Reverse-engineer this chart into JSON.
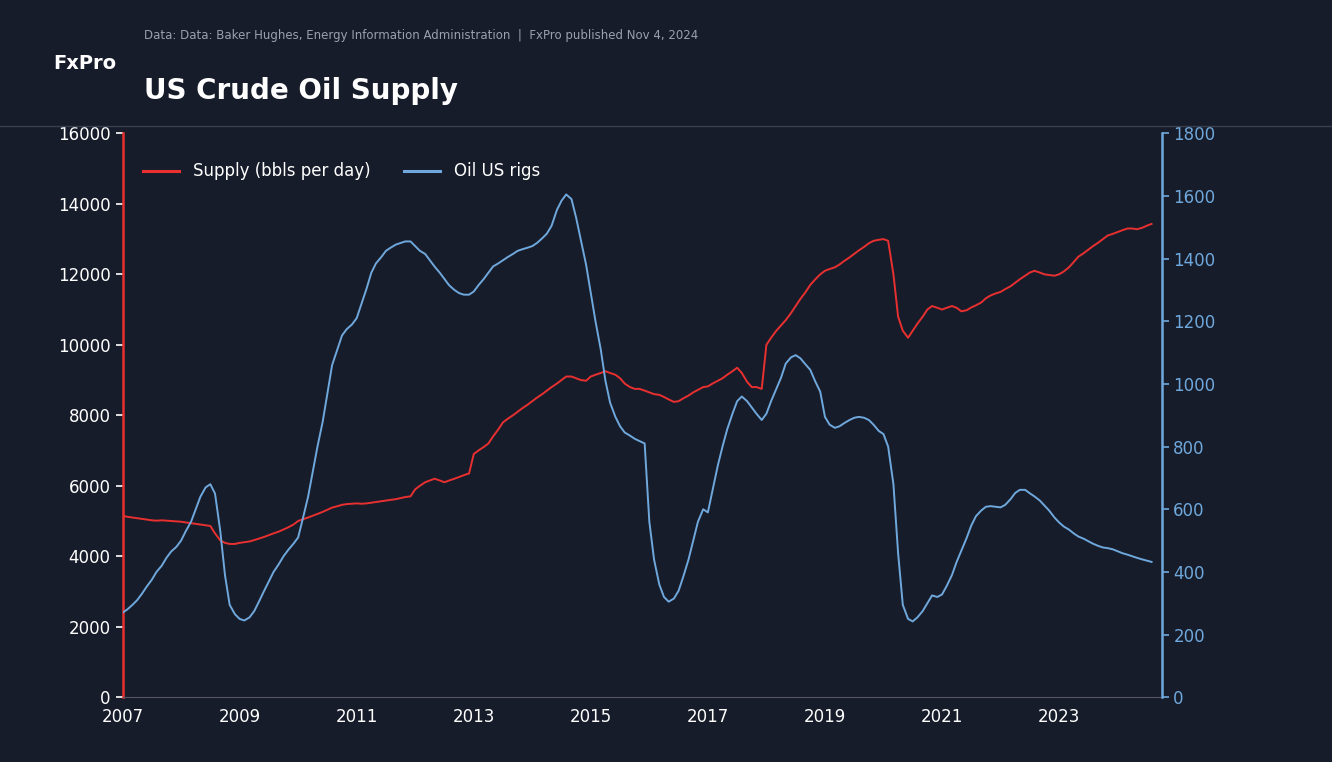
{
  "title": "US Crude Oil Supply",
  "subtitle": "Data: Data: Baker Hughes, Energy Information Administration  |  FxPro published Nov 4, 2024",
  "logo_text": "FxPro",
  "bg_color": "#171c2a",
  "header_bg": "#1e2433",
  "logo_bg": "#cc1111",
  "supply_color": "#e83030",
  "rigs_color": "#6fa8dc",
  "text_color": "#ffffff",
  "subtitle_color": "#9aa0b0",
  "left_ylim": [
    0,
    16000
  ],
  "right_ylim": [
    0,
    1800
  ],
  "left_yticks": [
    0,
    2000,
    4000,
    6000,
    8000,
    10000,
    12000,
    14000,
    16000
  ],
  "right_yticks": [
    0,
    200,
    400,
    600,
    800,
    1000,
    1200,
    1400,
    1600,
    1800
  ],
  "xticks": [
    2007,
    2009,
    2011,
    2013,
    2015,
    2017,
    2019,
    2021,
    2023
  ],
  "legend_supply": "Supply (bbls per day)",
  "legend_rigs": "Oil US rigs",
  "supply_years": [
    2007.0,
    2007.08,
    2007.17,
    2007.25,
    2007.33,
    2007.42,
    2007.5,
    2007.58,
    2007.67,
    2007.75,
    2007.83,
    2007.92,
    2008.0,
    2008.08,
    2008.17,
    2008.25,
    2008.33,
    2008.42,
    2008.5,
    2008.58,
    2008.67,
    2008.75,
    2008.83,
    2008.92,
    2009.0,
    2009.08,
    2009.17,
    2009.25,
    2009.33,
    2009.42,
    2009.5,
    2009.58,
    2009.67,
    2009.75,
    2009.83,
    2009.92,
    2010.0,
    2010.08,
    2010.17,
    2010.25,
    2010.33,
    2010.42,
    2010.5,
    2010.58,
    2010.67,
    2010.75,
    2010.83,
    2010.92,
    2011.0,
    2011.08,
    2011.17,
    2011.25,
    2011.33,
    2011.42,
    2011.5,
    2011.58,
    2011.67,
    2011.75,
    2011.83,
    2011.92,
    2012.0,
    2012.08,
    2012.17,
    2012.25,
    2012.33,
    2012.42,
    2012.5,
    2012.58,
    2012.67,
    2012.75,
    2012.83,
    2012.92,
    2013.0,
    2013.08,
    2013.17,
    2013.25,
    2013.33,
    2013.42,
    2013.5,
    2013.58,
    2013.67,
    2013.75,
    2013.83,
    2013.92,
    2014.0,
    2014.08,
    2014.17,
    2014.25,
    2014.33,
    2014.42,
    2014.5,
    2014.58,
    2014.67,
    2014.75,
    2014.83,
    2014.92,
    2015.0,
    2015.08,
    2015.17,
    2015.25,
    2015.33,
    2015.42,
    2015.5,
    2015.58,
    2015.67,
    2015.75,
    2015.83,
    2015.92,
    2016.0,
    2016.08,
    2016.17,
    2016.25,
    2016.33,
    2016.42,
    2016.5,
    2016.58,
    2016.67,
    2016.75,
    2016.83,
    2016.92,
    2017.0,
    2017.08,
    2017.17,
    2017.25,
    2017.33,
    2017.42,
    2017.5,
    2017.58,
    2017.67,
    2017.75,
    2017.83,
    2017.92,
    2018.0,
    2018.08,
    2018.17,
    2018.25,
    2018.33,
    2018.42,
    2018.5,
    2018.58,
    2018.67,
    2018.75,
    2018.83,
    2018.92,
    2019.0,
    2019.08,
    2019.17,
    2019.25,
    2019.33,
    2019.42,
    2019.5,
    2019.58,
    2019.67,
    2019.75,
    2019.83,
    2019.92,
    2020.0,
    2020.08,
    2020.17,
    2020.25,
    2020.33,
    2020.42,
    2020.5,
    2020.58,
    2020.67,
    2020.75,
    2020.83,
    2020.92,
    2021.0,
    2021.08,
    2021.17,
    2021.25,
    2021.33,
    2021.42,
    2021.5,
    2021.58,
    2021.67,
    2021.75,
    2021.83,
    2021.92,
    2022.0,
    2022.08,
    2022.17,
    2022.25,
    2022.33,
    2022.42,
    2022.5,
    2022.58,
    2022.67,
    2022.75,
    2022.83,
    2022.92,
    2023.0,
    2023.08,
    2023.17,
    2023.25,
    2023.33,
    2023.42,
    2023.5,
    2023.58,
    2023.67,
    2023.75,
    2023.83,
    2023.92,
    2024.0,
    2024.08,
    2024.17,
    2024.25,
    2024.33,
    2024.42,
    2024.5,
    2024.58
  ],
  "supply_values": [
    5150,
    5120,
    5100,
    5080,
    5060,
    5040,
    5020,
    5010,
    5020,
    5010,
    5000,
    4990,
    4980,
    4960,
    4940,
    4920,
    4900,
    4880,
    4860,
    4650,
    4450,
    4380,
    4350,
    4350,
    4380,
    4400,
    4420,
    4460,
    4500,
    4550,
    4600,
    4650,
    4700,
    4760,
    4820,
    4900,
    5000,
    5050,
    5100,
    5150,
    5200,
    5260,
    5320,
    5380,
    5420,
    5460,
    5480,
    5490,
    5500,
    5490,
    5500,
    5520,
    5540,
    5560,
    5580,
    5600,
    5620,
    5650,
    5680,
    5700,
    5900,
    6000,
    6100,
    6150,
    6200,
    6150,
    6100,
    6150,
    6200,
    6250,
    6300,
    6350,
    6900,
    7000,
    7100,
    7200,
    7400,
    7600,
    7800,
    7900,
    8000,
    8100,
    8200,
    8300,
    8400,
    8500,
    8600,
    8700,
    8800,
    8900,
    9000,
    9100,
    9100,
    9050,
    9000,
    8980,
    9100,
    9150,
    9200,
    9250,
    9200,
    9150,
    9050,
    8900,
    8800,
    8750,
    8750,
    8700,
    8650,
    8600,
    8580,
    8520,
    8450,
    8380,
    8400,
    8480,
    8560,
    8650,
    8720,
    8800,
    8820,
    8900,
    8980,
    9050,
    9150,
    9250,
    9350,
    9200,
    8950,
    8800,
    8800,
    8750,
    10000,
    10200,
    10400,
    10550,
    10700,
    10900,
    11100,
    11300,
    11500,
    11700,
    11850,
    12000,
    12100,
    12150,
    12200,
    12280,
    12380,
    12480,
    12580,
    12680,
    12780,
    12880,
    12950,
    12980,
    13000,
    12950,
    12000,
    10800,
    10400,
    10200,
    10400,
    10600,
    10800,
    11000,
    11100,
    11050,
    11000,
    11050,
    11100,
    11050,
    10950,
    10980,
    11060,
    11120,
    11200,
    11320,
    11400,
    11460,
    11500,
    11580,
    11660,
    11760,
    11860,
    11960,
    12050,
    12100,
    12050,
    12000,
    11980,
    11960,
    12000,
    12080,
    12200,
    12350,
    12500,
    12600,
    12700,
    12800,
    12900,
    13000,
    13100,
    13150,
    13200,
    13250,
    13300,
    13300,
    13280,
    13320,
    13380,
    13430
  ],
  "rigs_years": [
    2007.0,
    2007.08,
    2007.17,
    2007.25,
    2007.33,
    2007.42,
    2007.5,
    2007.58,
    2007.67,
    2007.75,
    2007.83,
    2007.92,
    2008.0,
    2008.08,
    2008.17,
    2008.25,
    2008.33,
    2008.42,
    2008.5,
    2008.58,
    2008.67,
    2008.75,
    2008.83,
    2008.92,
    2009.0,
    2009.08,
    2009.17,
    2009.25,
    2009.33,
    2009.42,
    2009.5,
    2009.58,
    2009.67,
    2009.75,
    2009.83,
    2009.92,
    2010.0,
    2010.08,
    2010.17,
    2010.25,
    2010.33,
    2010.42,
    2010.5,
    2010.58,
    2010.67,
    2010.75,
    2010.83,
    2010.92,
    2011.0,
    2011.08,
    2011.17,
    2011.25,
    2011.33,
    2011.42,
    2011.5,
    2011.58,
    2011.67,
    2011.75,
    2011.83,
    2011.92,
    2012.0,
    2012.08,
    2012.17,
    2012.25,
    2012.33,
    2012.42,
    2012.5,
    2012.58,
    2012.67,
    2012.75,
    2012.83,
    2012.92,
    2013.0,
    2013.08,
    2013.17,
    2013.25,
    2013.33,
    2013.42,
    2013.5,
    2013.58,
    2013.67,
    2013.75,
    2013.83,
    2013.92,
    2014.0,
    2014.08,
    2014.17,
    2014.25,
    2014.33,
    2014.42,
    2014.5,
    2014.58,
    2014.67,
    2014.75,
    2014.83,
    2014.92,
    2015.0,
    2015.08,
    2015.17,
    2015.25,
    2015.33,
    2015.42,
    2015.5,
    2015.58,
    2015.67,
    2015.75,
    2015.83,
    2015.92,
    2016.0,
    2016.08,
    2016.17,
    2016.25,
    2016.33,
    2016.42,
    2016.5,
    2016.58,
    2016.67,
    2016.75,
    2016.83,
    2016.92,
    2017.0,
    2017.08,
    2017.17,
    2017.25,
    2017.33,
    2017.42,
    2017.5,
    2017.58,
    2017.67,
    2017.75,
    2017.83,
    2017.92,
    2018.0,
    2018.08,
    2018.17,
    2018.25,
    2018.33,
    2018.42,
    2018.5,
    2018.58,
    2018.67,
    2018.75,
    2018.83,
    2018.92,
    2019.0,
    2019.08,
    2019.17,
    2019.25,
    2019.33,
    2019.42,
    2019.5,
    2019.58,
    2019.67,
    2019.75,
    2019.83,
    2019.92,
    2020.0,
    2020.08,
    2020.17,
    2020.25,
    2020.33,
    2020.42,
    2020.5,
    2020.58,
    2020.67,
    2020.75,
    2020.83,
    2020.92,
    2021.0,
    2021.08,
    2021.17,
    2021.25,
    2021.33,
    2021.42,
    2021.5,
    2021.58,
    2021.67,
    2021.75,
    2021.83,
    2021.92,
    2022.0,
    2022.08,
    2022.17,
    2022.25,
    2022.33,
    2022.42,
    2022.5,
    2022.58,
    2022.67,
    2022.75,
    2022.83,
    2022.92,
    2023.0,
    2023.08,
    2023.17,
    2023.25,
    2023.33,
    2023.42,
    2023.5,
    2023.58,
    2023.67,
    2023.75,
    2023.83,
    2023.92,
    2024.0,
    2024.08,
    2024.17,
    2024.25,
    2024.33,
    2024.42,
    2024.5,
    2024.58
  ],
  "rigs_values": [
    270,
    280,
    295,
    310,
    330,
    355,
    375,
    400,
    420,
    445,
    465,
    480,
    500,
    530,
    560,
    600,
    640,
    670,
    680,
    650,
    530,
    390,
    295,
    265,
    250,
    245,
    255,
    275,
    305,
    340,
    370,
    400,
    425,
    450,
    470,
    490,
    510,
    570,
    640,
    720,
    800,
    880,
    970,
    1060,
    1110,
    1155,
    1175,
    1190,
    1210,
    1255,
    1305,
    1355,
    1385,
    1405,
    1425,
    1435,
    1445,
    1450,
    1455,
    1455,
    1440,
    1425,
    1415,
    1395,
    1375,
    1355,
    1335,
    1315,
    1300,
    1290,
    1285,
    1285,
    1295,
    1315,
    1335,
    1355,
    1375,
    1385,
    1395,
    1405,
    1415,
    1425,
    1430,
    1435,
    1440,
    1450,
    1465,
    1480,
    1505,
    1555,
    1585,
    1605,
    1590,
    1530,
    1460,
    1380,
    1290,
    1200,
    1110,
    1010,
    940,
    895,
    865,
    845,
    835,
    825,
    818,
    810,
    560,
    440,
    360,
    320,
    305,
    315,
    340,
    385,
    440,
    500,
    560,
    600,
    590,
    660,
    740,
    800,
    855,
    905,
    945,
    960,
    945,
    925,
    905,
    885,
    905,
    945,
    985,
    1020,
    1065,
    1085,
    1092,
    1082,
    1062,
    1045,
    1010,
    975,
    895,
    870,
    860,
    865,
    875,
    885,
    892,
    895,
    892,
    885,
    870,
    850,
    840,
    800,
    680,
    460,
    295,
    250,
    242,
    255,
    275,
    300,
    325,
    320,
    328,
    355,
    390,
    432,
    468,
    508,
    548,
    578,
    596,
    608,
    610,
    608,
    606,
    614,
    632,
    652,
    662,
    662,
    651,
    641,
    628,
    612,
    596,
    574,
    558,
    545,
    535,
    523,
    513,
    506,
    498,
    490,
    483,
    478,
    476,
    472,
    466,
    460,
    455,
    450,
    445,
    440,
    436,
    432
  ]
}
